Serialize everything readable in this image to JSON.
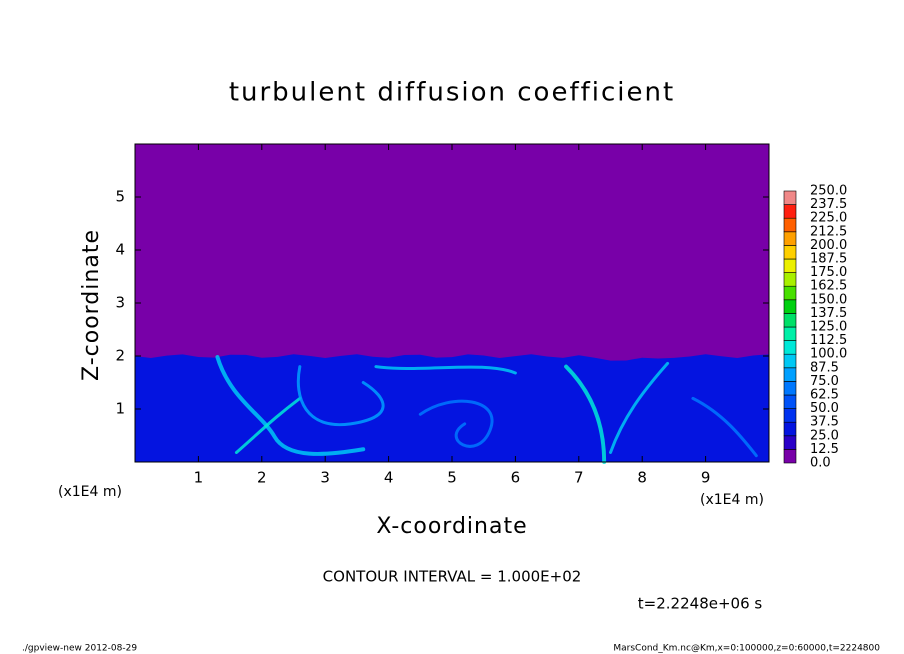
{
  "chart_data": {
    "type": "contour",
    "title": "turbulent diffusion coefficient",
    "x_label": "X-coordinate",
    "y_label": "Z-coordinate",
    "x_unit_label": "(x1E4 m)",
    "y_unit_label": "(x1E4 m)",
    "xlim": [
      0,
      10
    ],
    "xticks": [
      1,
      2,
      3,
      4,
      5,
      6,
      7,
      8,
      9
    ],
    "ylim": [
      0,
      6
    ],
    "yticks": [
      1,
      2,
      3,
      4,
      5
    ],
    "colorbar": {
      "levels": [
        {
          "value": 0,
          "label": "0.0"
        },
        12.5,
        {
          "value": 25,
          "label": "25.0"
        },
        37.5,
        {
          "value": 50,
          "label": "50.0"
        },
        62.5,
        {
          "value": 75,
          "label": "75.0"
        },
        87.5,
        {
          "value": 100,
          "label": "100.0"
        },
        112.5,
        {
          "value": 125,
          "label": "125.0"
        },
        137.5,
        {
          "value": 150,
          "label": "150.0"
        },
        162.5,
        {
          "value": 175,
          "label": "175.0"
        },
        187.5,
        {
          "value": 200,
          "label": "200.0"
        },
        212.5,
        {
          "value": 225,
          "label": "225.0"
        },
        237.5,
        {
          "value": 250,
          "label": "250.0"
        }
      ],
      "colors": [
        "#7800a8",
        "#2a00c8",
        "#0414e0",
        "#0032f0",
        "#0052f8",
        "#0078ff",
        "#00a0ff",
        "#00c8f4",
        "#00e8d8",
        "#00f0a8",
        "#00e068",
        "#00d010",
        "#48e000",
        "#a8f000",
        "#ecf000",
        "#ffd000",
        "#ffa000",
        "#ff6000",
        "#ff2010",
        "#f08888"
      ]
    },
    "contour_interval": "CONTOUR INTERVAL = 1.000E+02",
    "time_label": "t=2.2248e+06 s",
    "footer_left": "./gpview-new  2012-08-29",
    "footer_right": "MarsCond_Km.nc@Km,x=0:100000,z=0:60000,t=2224800"
  }
}
